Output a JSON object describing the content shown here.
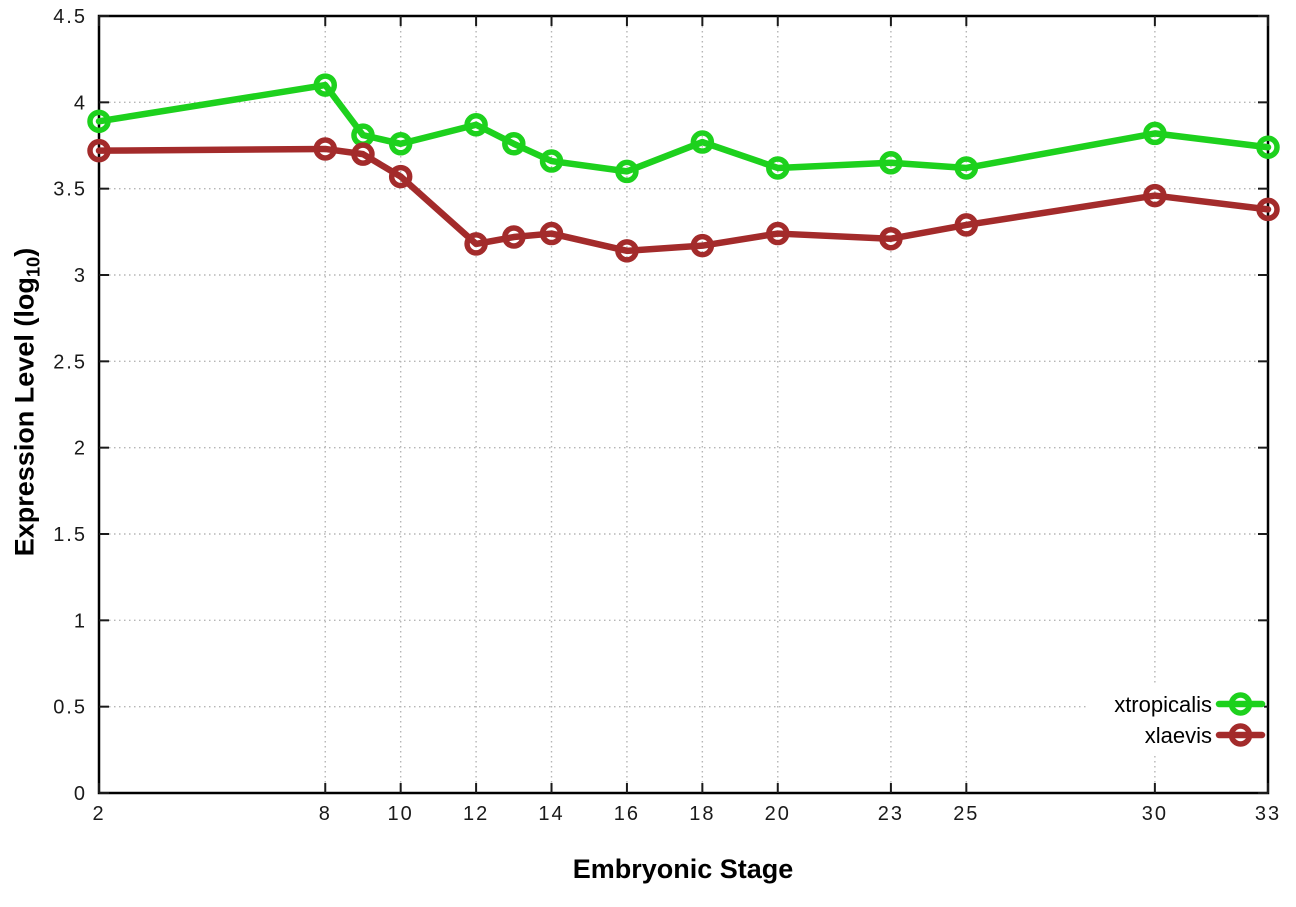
{
  "figure": {
    "ylabel_prefix": "Expression Level (log",
    "ylabel_sub": "10",
    "ylabel_suffix": ")"
  },
  "chart_data": {
    "type": "line",
    "title": "",
    "xlabel": "Embryonic Stage",
    "ylabel": "Expression Level (log10)",
    "x": [
      2,
      8,
      9,
      10,
      12,
      13,
      14,
      16,
      18,
      20,
      23,
      25,
      30,
      33
    ],
    "series": [
      {
        "name": "xtropicalis",
        "color": "#1dd11d",
        "values": [
          3.89,
          4.1,
          3.81,
          3.76,
          3.87,
          3.76,
          3.66,
          3.6,
          3.77,
          3.62,
          3.65,
          3.62,
          3.82,
          3.74
        ]
      },
      {
        "name": "xlaevis",
        "color": "#a32b2b",
        "values": [
          3.72,
          3.73,
          3.7,
          3.57,
          3.18,
          3.22,
          3.24,
          3.14,
          3.17,
          3.24,
          3.21,
          3.29,
          3.46,
          3.38
        ]
      }
    ],
    "xticks": [
      2,
      8,
      10,
      12,
      14,
      16,
      18,
      20,
      23,
      25,
      30,
      33
    ],
    "yticks": [
      0,
      0.5,
      1,
      1.5,
      2,
      2.5,
      3,
      3.5,
      4,
      4.5
    ],
    "xlim": [
      2,
      33
    ],
    "ylim": [
      0,
      4.5
    ],
    "grid": true,
    "legend_position": "bottom-right",
    "legend": [
      "xtropicalis",
      "xlaevis"
    ]
  },
  "style": {
    "background": "#ffffff",
    "border_color": "#000000",
    "tick_color": "#1a1a1a",
    "grid_color": "#b5b5b5",
    "tick_label_color": "#1a1a1a"
  }
}
